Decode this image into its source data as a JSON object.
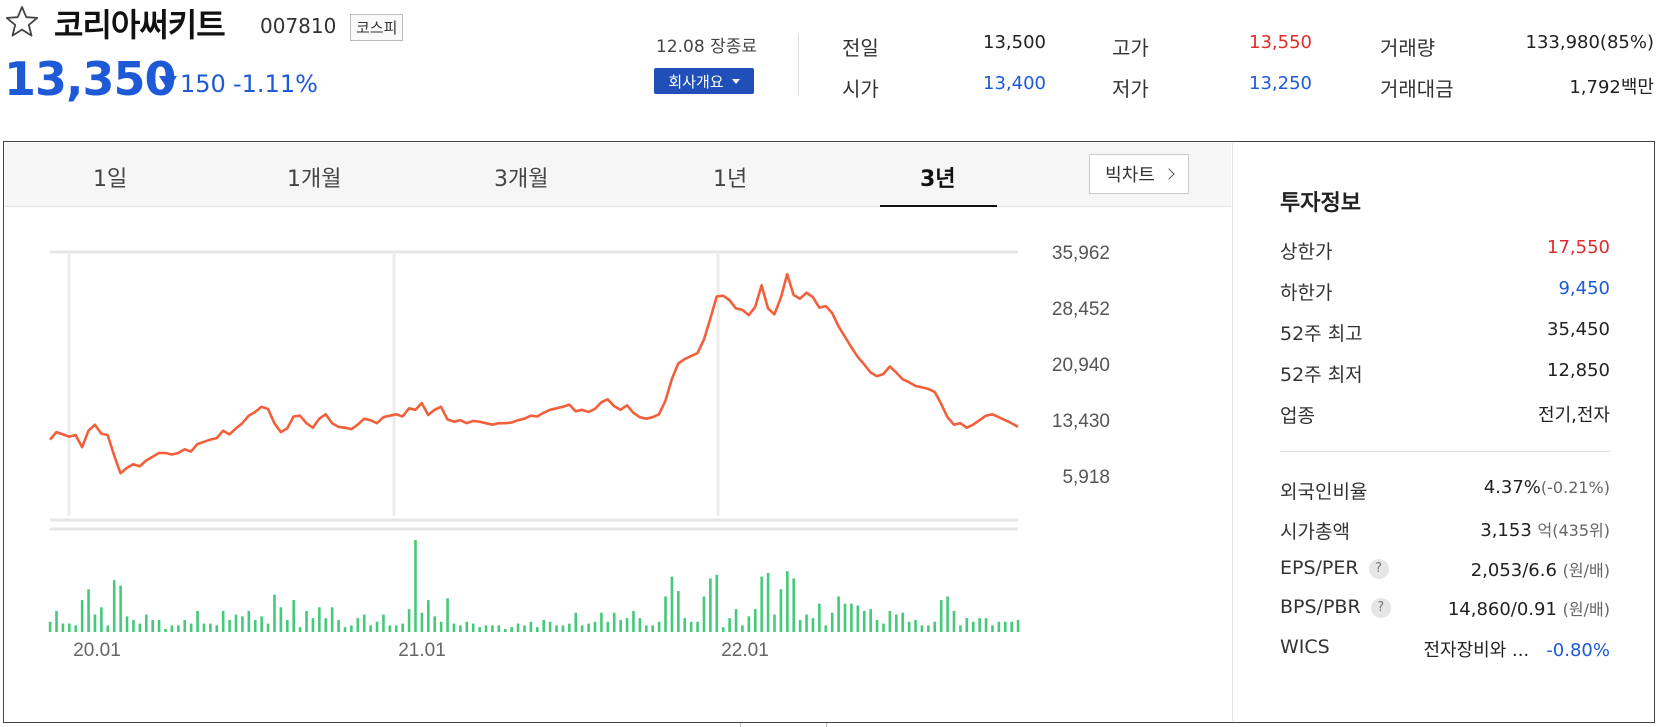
{
  "stock": {
    "name": "코리아써키트",
    "code": "007810",
    "market": "코스피",
    "price": "13,350",
    "change": "150",
    "change_pct": "-1.11%",
    "close_label": "12.08 장종료",
    "company_button": "회사개요"
  },
  "stats": {
    "prev_label": "전일",
    "prev": "13,500",
    "high_label": "고가",
    "high": "13,550",
    "volume_label": "거래량",
    "volume": "133,980(85%)",
    "open_label": "시가",
    "open": "13,400",
    "low_label": "저가",
    "low": "13,250",
    "amount_label": "거래대금",
    "amount": "1,792백만"
  },
  "tabs": [
    "1일",
    "1개월",
    "3개월",
    "1년",
    "3년"
  ],
  "active_tab": "3년",
  "bigchart_label": "빅차트",
  "investment": {
    "title": "투자정보",
    "upper_label": "상한가",
    "upper": "17,550",
    "lower_label": "하한가",
    "lower": "9,450",
    "high52_label": "52주 최고",
    "high52": "35,450",
    "low52_label": "52주 최저",
    "low52": "12,850",
    "sector_label": "업종",
    "sector": "전기,전자",
    "foreign_label": "외국인비율",
    "foreign": "4.37%",
    "foreign_sub": "(-0.21%)",
    "mcap_label": "시가총액",
    "mcap": "3,153",
    "mcap_unit": "억",
    "mcap_sub": "(435위)",
    "eps_label": "EPS/PER",
    "eps": "2,053/6.6",
    "eps_unit": "(원/배)",
    "bps_label": "BPS/PBR",
    "bps": "14,860/0.91",
    "bps_unit": "(원/배)",
    "wics_label": "WICS",
    "wics": "전자장비와 ...",
    "wics_change": "-0.80%"
  },
  "colors": {
    "up": "#e22b2b",
    "down": "#1e5ad6",
    "line": "#f2603b",
    "volume": "#45c97a"
  },
  "chart_data": {
    "type": "line",
    "y_ticks": [
      "35,962",
      "28,452",
      "20,940",
      "13,430",
      "5,918"
    ],
    "x_ticks": [
      "20.01",
      "21.01",
      "22.01"
    ],
    "ylim": [
      5918,
      35962
    ],
    "price": [
      10800,
      11800,
      11500,
      11200,
      11400,
      9800,
      12000,
      12800,
      11600,
      11400,
      8700,
      6300,
      7000,
      7500,
      7200,
      8000,
      8500,
      9000,
      9000,
      8800,
      9000,
      9500,
      9200,
      10200,
      10500,
      10800,
      11000,
      12000,
      11500,
      12300,
      13000,
      14000,
      14500,
      15200,
      14900,
      13000,
      11800,
      12300,
      13900,
      14000,
      13000,
      12400,
      13600,
      14200,
      13000,
      12500,
      12400,
      12200,
      12800,
      13600,
      13400,
      13000,
      13800,
      14000,
      14200,
      13900,
      15000,
      14800,
      15700,
      14100,
      14800,
      15200,
      13500,
      13200,
      13400,
      13000,
      13300,
      13200,
      13000,
      12800,
      13000,
      13000,
      13100,
      13400,
      13600,
      14000,
      13900,
      14400,
      14800,
      15000,
      15200,
      15500,
      14600,
      14800,
      14500,
      14900,
      15800,
      16200,
      15300,
      14800,
      15400,
      14400,
      13800,
      13600,
      13800,
      14200,
      16000,
      18900,
      21000,
      21600,
      22000,
      22400,
      24200,
      27000,
      30000,
      30100,
      29500,
      28400,
      28200,
      27500,
      28600,
      31500,
      28400,
      27600,
      29800,
      33000,
      30200,
      29700,
      30500,
      29900,
      28500,
      28700,
      27800,
      26000,
      24600,
      23200,
      21900,
      20900,
      19800,
      19300,
      19600,
      20600,
      19800,
      18900,
      18500,
      18000,
      17800,
      17600,
      17200,
      15600,
      13800,
      12800,
      13000,
      12400,
      12800,
      13400,
      14000,
      14200,
      13800,
      13400,
      13000,
      12500
    ]
  }
}
